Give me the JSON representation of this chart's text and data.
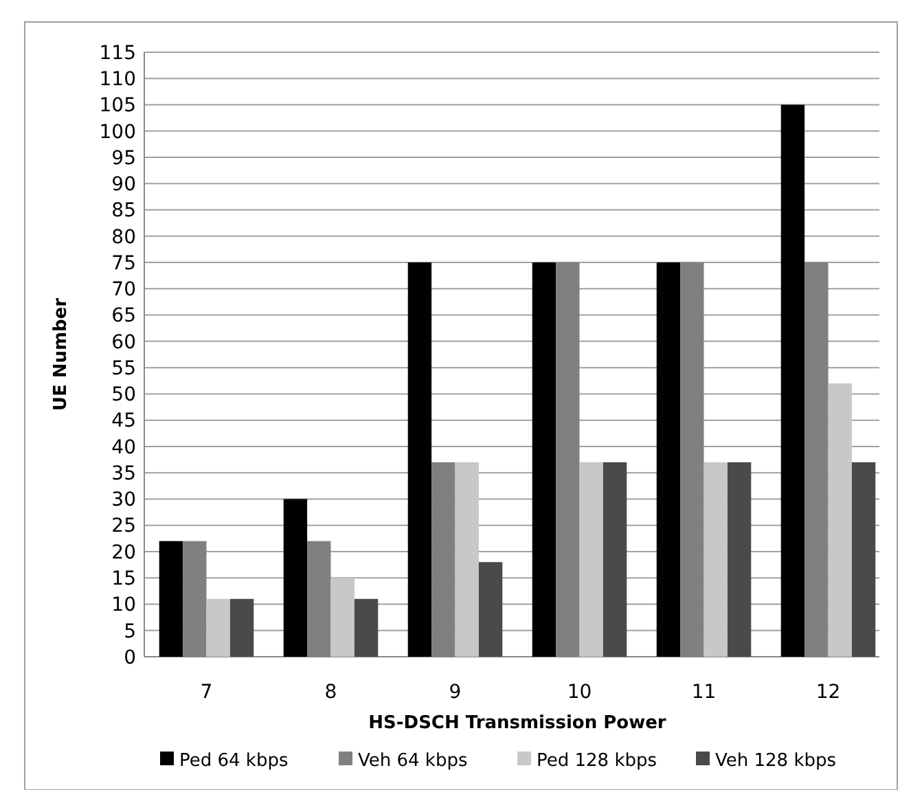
{
  "chart_data": {
    "type": "bar",
    "xlabel": "HS-DSCH Transmission Power",
    "ylabel": "UE Number",
    "categories": [
      "7",
      "8",
      "9",
      "10",
      "11",
      "12"
    ],
    "series": [
      {
        "name": "Ped 64 kbps",
        "color": "#000000",
        "values": [
          22,
          30,
          75,
          75,
          75,
          105
        ]
      },
      {
        "name": "Veh 64 kbps",
        "color": "#808080",
        "values": [
          22,
          22,
          37,
          75,
          75,
          75
        ]
      },
      {
        "name": "Ped 128 kbps",
        "color": "#c8c8c8",
        "values": [
          11,
          15,
          37,
          37,
          37,
          52
        ]
      },
      {
        "name": "Veh 128 kbps",
        "color": "#4a4a4a",
        "values": [
          11,
          11,
          18,
          37,
          37,
          37
        ]
      }
    ],
    "ylim": [
      0,
      115
    ],
    "yticks": [
      0,
      5,
      10,
      15,
      20,
      25,
      30,
      35,
      40,
      45,
      50,
      55,
      60,
      65,
      70,
      75,
      80,
      85,
      90,
      95,
      100,
      105,
      110,
      115
    ],
    "grid": "y",
    "legend": "bottom"
  }
}
